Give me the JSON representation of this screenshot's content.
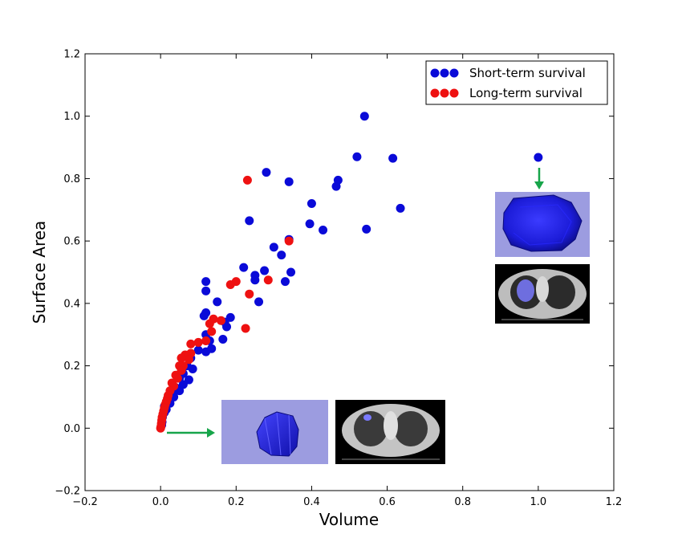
{
  "chart_data": {
    "type": "scatter",
    "xlabel": "Volume",
    "ylabel": "Surface Area",
    "xlim": [
      -0.2,
      1.2
    ],
    "ylim": [
      -0.2,
      1.2
    ],
    "xticks": [
      "−0.2",
      "0.0",
      "0.2",
      "0.4",
      "0.6",
      "0.8",
      "1.0",
      "1.2"
    ],
    "yticks": [
      "−0.2",
      "0.0",
      "0.2",
      "0.4",
      "0.6",
      "0.8",
      "1.0",
      "1.2"
    ],
    "grid": false,
    "legend_placement": "top-right",
    "series": [
      {
        "name": "Short-term survival",
        "color": "#0a0ad8",
        "points": [
          [
            0.54,
            1.0
          ],
          [
            0.52,
            0.87
          ],
          [
            0.615,
            0.865
          ],
          [
            1.0,
            0.868
          ],
          [
            0.28,
            0.82
          ],
          [
            0.34,
            0.79
          ],
          [
            0.47,
            0.795
          ],
          [
            0.465,
            0.775
          ],
          [
            0.4,
            0.72
          ],
          [
            0.635,
            0.705
          ],
          [
            0.235,
            0.665
          ],
          [
            0.395,
            0.655
          ],
          [
            0.43,
            0.635
          ],
          [
            0.545,
            0.638
          ],
          [
            0.34,
            0.605
          ],
          [
            0.3,
            0.58
          ],
          [
            0.32,
            0.555
          ],
          [
            0.22,
            0.515
          ],
          [
            0.275,
            0.505
          ],
          [
            0.25,
            0.49
          ],
          [
            0.345,
            0.5
          ],
          [
            0.25,
            0.475
          ],
          [
            0.33,
            0.47
          ],
          [
            0.12,
            0.47
          ],
          [
            0.12,
            0.44
          ],
          [
            0.26,
            0.405
          ],
          [
            0.15,
            0.405
          ],
          [
            0.12,
            0.37
          ],
          [
            0.115,
            0.36
          ],
          [
            0.185,
            0.355
          ],
          [
            0.17,
            0.34
          ],
          [
            0.175,
            0.325
          ],
          [
            0.12,
            0.3
          ],
          [
            0.165,
            0.285
          ],
          [
            0.13,
            0.28
          ],
          [
            0.135,
            0.255
          ],
          [
            0.1,
            0.25
          ],
          [
            0.12,
            0.245
          ],
          [
            0.08,
            0.225
          ],
          [
            0.07,
            0.2
          ],
          [
            0.085,
            0.19
          ],
          [
            0.06,
            0.175
          ],
          [
            0.05,
            0.16
          ],
          [
            0.075,
            0.155
          ],
          [
            0.06,
            0.14
          ],
          [
            0.04,
            0.13
          ],
          [
            0.05,
            0.12
          ],
          [
            0.03,
            0.11
          ],
          [
            0.035,
            0.1
          ],
          [
            0.02,
            0.09
          ],
          [
            0.025,
            0.08
          ],
          [
            0.01,
            0.07
          ],
          [
            0.015,
            0.06
          ],
          [
            0.01,
            0.05
          ],
          [
            0.005,
            0.035
          ],
          [
            0.004,
            0.02
          ],
          [
            0.003,
            0.01
          ]
        ]
      },
      {
        "name": "Long-term survival",
        "color": "#ee1111",
        "points": [
          [
            0.23,
            0.795
          ],
          [
            0.34,
            0.6
          ],
          [
            0.285,
            0.475
          ],
          [
            0.2,
            0.47
          ],
          [
            0.185,
            0.46
          ],
          [
            0.235,
            0.43
          ],
          [
            0.14,
            0.35
          ],
          [
            0.16,
            0.345
          ],
          [
            0.13,
            0.335
          ],
          [
            0.225,
            0.32
          ],
          [
            0.135,
            0.31
          ],
          [
            0.12,
            0.28
          ],
          [
            0.1,
            0.275
          ],
          [
            0.08,
            0.27
          ],
          [
            0.08,
            0.24
          ],
          [
            0.065,
            0.235
          ],
          [
            0.075,
            0.22
          ],
          [
            0.055,
            0.225
          ],
          [
            0.06,
            0.2
          ],
          [
            0.05,
            0.2
          ],
          [
            0.055,
            0.185
          ],
          [
            0.04,
            0.17
          ],
          [
            0.045,
            0.16
          ],
          [
            0.03,
            0.145
          ],
          [
            0.035,
            0.135
          ],
          [
            0.025,
            0.12
          ],
          [
            0.02,
            0.105
          ],
          [
            0.018,
            0.095
          ],
          [
            0.015,
            0.085
          ],
          [
            0.012,
            0.075
          ],
          [
            0.01,
            0.065
          ],
          [
            0.008,
            0.055
          ],
          [
            0.006,
            0.045
          ],
          [
            0.004,
            0.035
          ],
          [
            0.003,
            0.025
          ],
          [
            0.002,
            0.015
          ],
          [
            0.001,
            0.005
          ],
          [
            0.0,
            0.0
          ]
        ]
      }
    ],
    "annotations": [
      {
        "type": "arrow",
        "color": "#17a54a",
        "from_data_point": [
          1.0,
          0.868
        ],
        "direction": "down",
        "points_to": "large-tumor-3d-render"
      },
      {
        "type": "arrow",
        "color": "#17a54a",
        "from_data_point": [
          0.0,
          0.0
        ],
        "direction": "right",
        "points_to": "small-tumor-3d-render"
      }
    ]
  }
}
